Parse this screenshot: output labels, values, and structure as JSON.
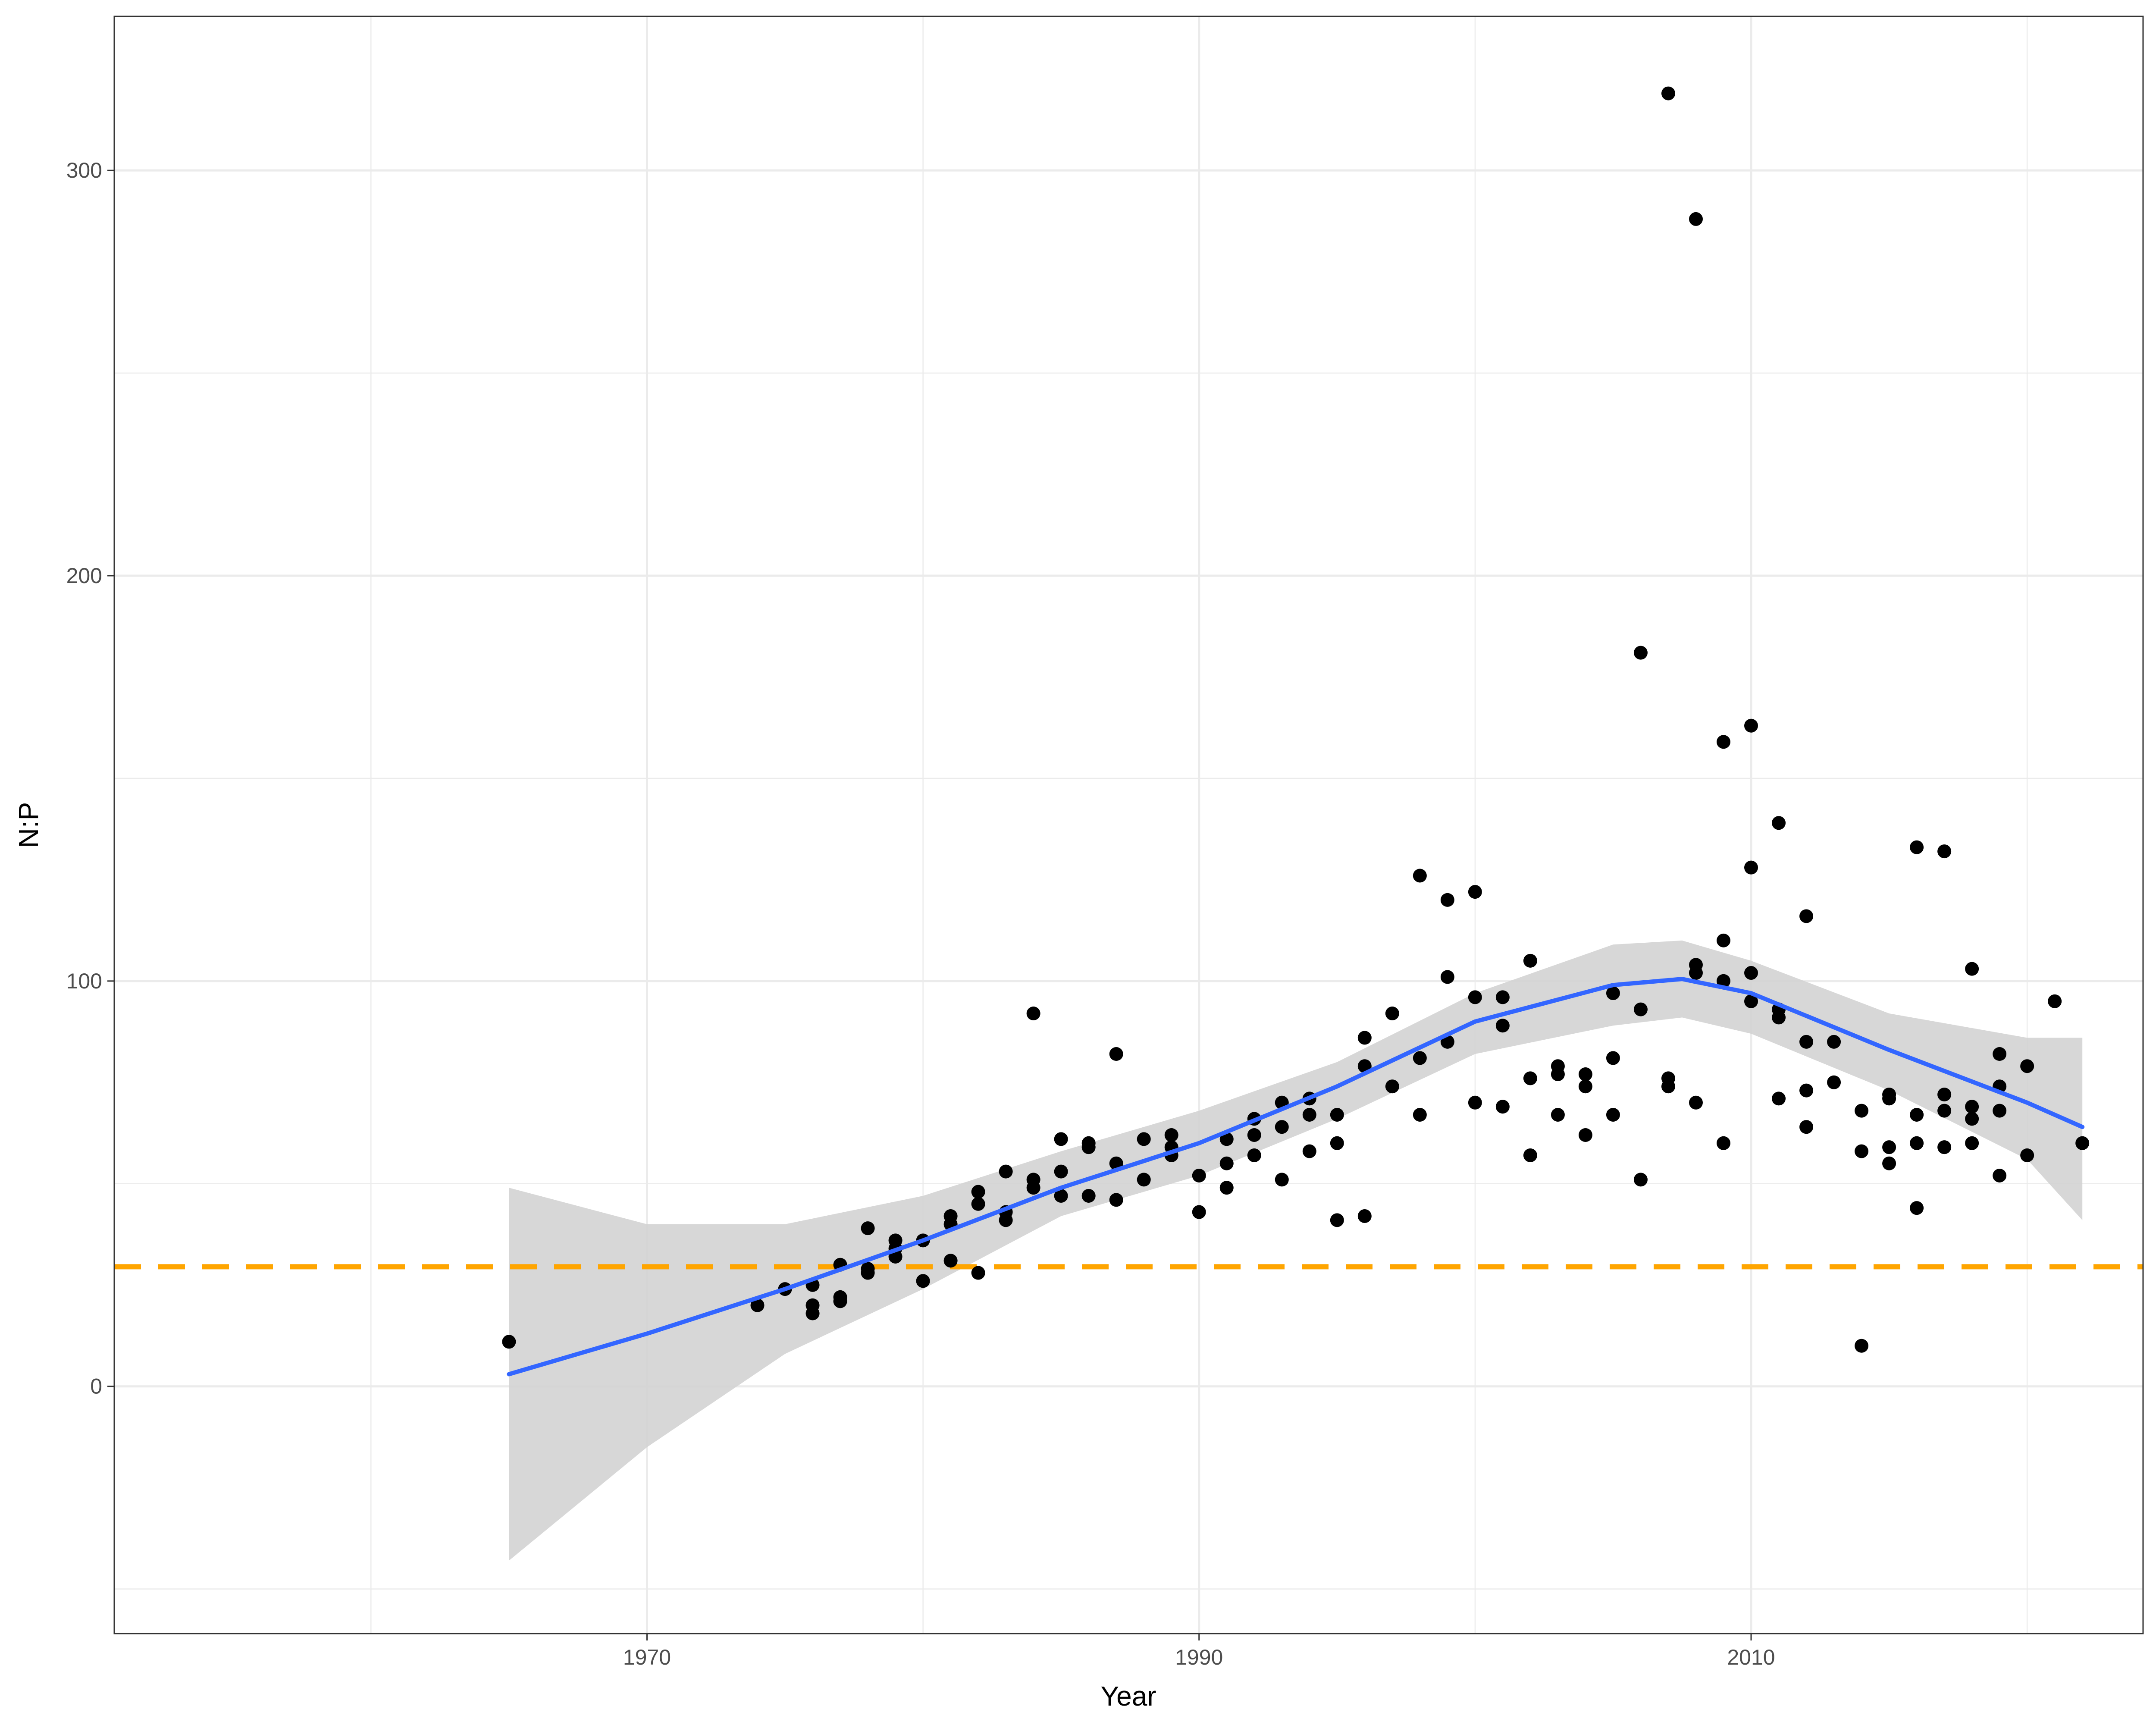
{
  "chart_data": {
    "type": "scatter",
    "xlabel": "Year",
    "ylabel": "N:P",
    "xlim": [
      1950.7,
      2024.2
    ],
    "ylim": [
      -61,
      338
    ],
    "x_ticks": [
      1970,
      1990,
      2010
    ],
    "x_tick_labels": [
      "1970",
      "1990",
      "2010"
    ],
    "x_minor_ticks": [
      1960,
      1980,
      2000,
      2020
    ],
    "y_ticks": [
      0,
      100,
      200,
      300
    ],
    "y_tick_labels": [
      "0",
      "100",
      "200",
      "300"
    ],
    "y_minor_ticks": [
      -50,
      50,
      150,
      250
    ],
    "grid": true,
    "reference_line": {
      "y": 29.5,
      "color": "#FFA500",
      "style": "dashed"
    },
    "smooth": {
      "method": "loess",
      "color": "#3366FF",
      "ribbon_color": "#D3D3D3",
      "x": [
        1965,
        1970,
        1975,
        1980,
        1985,
        1990,
        1995,
        2000,
        2005,
        2007.5,
        2010,
        2015,
        2020,
        2022
      ],
      "y": [
        3,
        13,
        24,
        36,
        49,
        60,
        74,
        90,
        99,
        100.5,
        97,
        83,
        70,
        64
      ],
      "ymin": [
        -43,
        -15,
        8,
        24,
        42,
        52,
        66,
        82,
        89,
        91,
        87,
        73,
        56,
        41
      ],
      "ymax": [
        49,
        40,
        40,
        47,
        58,
        68,
        80,
        97,
        109,
        110,
        105,
        92,
        86,
        86
      ]
    },
    "points": {
      "color": "#000000",
      "x": [
        1965,
        1974,
        1975,
        1976,
        1976,
        1976,
        1977,
        1977,
        1977,
        1978,
        1978,
        1978,
        1979,
        1979,
        1979,
        1980,
        1980,
        1981,
        1981,
        1981,
        1982,
        1982,
        1982,
        1983,
        1983,
        1983,
        1984,
        1984,
        1984,
        1985,
        1985,
        1985,
        1986,
        1986,
        1986,
        1987,
        1987,
        1987,
        1988,
        1988,
        1989,
        1989,
        1989,
        1990,
        1990,
        1991,
        1991,
        1991,
        1992,
        1992,
        1992,
        1993,
        1993,
        1993,
        1994,
        1994,
        1994,
        1995,
        1995,
        1995,
        1996,
        1996,
        1996,
        1997,
        1997,
        1998,
        1998,
        1998,
        1999,
        1999,
        1999,
        2000,
        2000,
        2000,
        2001,
        2001,
        2001,
        2002,
        2002,
        2002,
        2003,
        2003,
        2003,
        2004,
        2004,
        2004,
        2005,
        2005,
        2005,
        2006,
        2006,
        2006,
        2007,
        2007,
        2007,
        2008,
        2008,
        2008,
        2008,
        2009,
        2009,
        2009,
        2009,
        2010,
        2010,
        2010,
        2010,
        2011,
        2011,
        2011,
        2011,
        2012,
        2012,
        2012,
        2012,
        2013,
        2013,
        2014,
        2014,
        2014,
        2015,
        2015,
        2015,
        2015,
        2016,
        2016,
        2016,
        2016,
        2017,
        2017,
        2017,
        2017,
        2018,
        2018,
        2018,
        2018,
        2019,
        2019,
        2019,
        2019,
        2020,
        2020,
        2021,
        2022
      ],
      "y": [
        11,
        20,
        24,
        20,
        18,
        25,
        21,
        22,
        30,
        39,
        28,
        29,
        36,
        32,
        34,
        36,
        26,
        42,
        31,
        40,
        48,
        45,
        28,
        53,
        41,
        43,
        92,
        49,
        51,
        61,
        53,
        47,
        59,
        60,
        47,
        82,
        46,
        55,
        61,
        51,
        62,
        57,
        59,
        52,
        43,
        61,
        55,
        49,
        66,
        62,
        57,
        70,
        64,
        51,
        71,
        67,
        58,
        67,
        60,
        41,
        86,
        79,
        42,
        92,
        74,
        126,
        81,
        67,
        120,
        85,
        101,
        122,
        70,
        96,
        96,
        69,
        89,
        105,
        76,
        57,
        79,
        77,
        67,
        77,
        74,
        62,
        97,
        81,
        67,
        181,
        93,
        51,
        319,
        76,
        74,
        288,
        104,
        102,
        70,
        159,
        110,
        100,
        60,
        163,
        128,
        102,
        95,
        139,
        93,
        91,
        71,
        116,
        85,
        73,
        64,
        85,
        75,
        68,
        58,
        10,
        71,
        72,
        59,
        55,
        133,
        67,
        60,
        44,
        132,
        72,
        68,
        59,
        103,
        69,
        66,
        60,
        82,
        74,
        68,
        52,
        79,
        57,
        95,
        60
      ]
    }
  }
}
